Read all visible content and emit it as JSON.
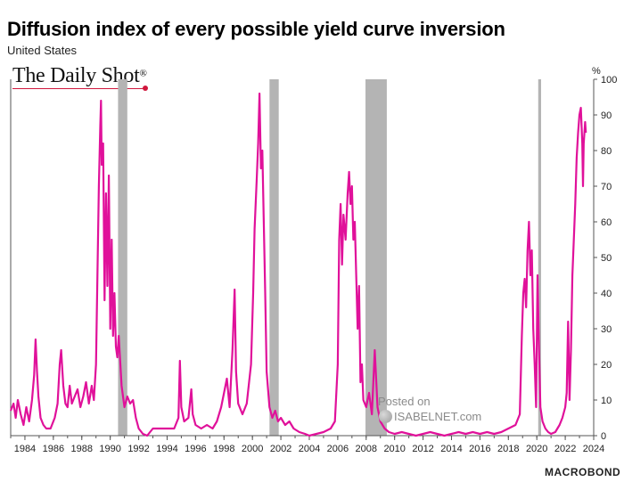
{
  "header": {
    "title": "Diffusion index of every possible yield curve inversion",
    "subtitle": "United States"
  },
  "branding": {
    "logo_text": "The Daily Shot",
    "logo_mark": "®",
    "footer": "MACROBOND",
    "watermark_posted": "Posted on",
    "watermark_site": "ISABELNET.com"
  },
  "colors": {
    "series": "#e0119a",
    "recession": "#b4b4b4",
    "logo_accent": "#d0173d"
  },
  "chart_data": {
    "type": "line",
    "title": "Diffusion index of every possible yield curve inversion",
    "subtitle": "United States",
    "y_unit": "%",
    "ylim": [
      0,
      100
    ],
    "xlim": [
      1983,
      2024
    ],
    "y_ticks": [
      0,
      10,
      20,
      30,
      40,
      50,
      60,
      70,
      80,
      90,
      100
    ],
    "x_ticks": [
      "1984",
      "1986",
      "1988",
      "1990",
      "1992",
      "1994",
      "1996",
      "1998",
      "2000",
      "2002",
      "2004",
      "2006",
      "2008",
      "2010",
      "2012",
      "2014",
      "2016",
      "2018",
      "2020",
      "2022",
      "2024"
    ],
    "y_axis_position": "right",
    "grid": false,
    "recessions": [
      {
        "start": 1990.55,
        "end": 1991.2
      },
      {
        "start": 2001.2,
        "end": 2001.85
      },
      {
        "start": 2007.95,
        "end": 2009.45
      },
      {
        "start": 2020.1,
        "end": 2020.3
      }
    ],
    "series": [
      {
        "values": [
          [
            1983.0,
            7
          ],
          [
            1983.2,
            9
          ],
          [
            1983.35,
            5
          ],
          [
            1983.5,
            10
          ],
          [
            1983.7,
            6
          ],
          [
            1983.9,
            3
          ],
          [
            1984.1,
            8
          ],
          [
            1984.3,
            4
          ],
          [
            1984.5,
            10
          ],
          [
            1984.65,
            17
          ],
          [
            1984.75,
            27
          ],
          [
            1984.85,
            18
          ],
          [
            1984.95,
            11
          ],
          [
            1985.1,
            5
          ],
          [
            1985.3,
            3
          ],
          [
            1985.5,
            2
          ],
          [
            1985.8,
            2
          ],
          [
            1986.1,
            5
          ],
          [
            1986.3,
            9
          ],
          [
            1986.45,
            20
          ],
          [
            1986.55,
            24
          ],
          [
            1986.7,
            14
          ],
          [
            1986.85,
            9
          ],
          [
            1987.0,
            8
          ],
          [
            1987.15,
            14
          ],
          [
            1987.3,
            9
          ],
          [
            1987.5,
            11
          ],
          [
            1987.7,
            13
          ],
          [
            1987.9,
            8
          ],
          [
            1988.1,
            11
          ],
          [
            1988.3,
            15
          ],
          [
            1988.5,
            9
          ],
          [
            1988.7,
            14
          ],
          [
            1988.85,
            10
          ],
          [
            1989.0,
            20
          ],
          [
            1989.1,
            45
          ],
          [
            1989.2,
            70
          ],
          [
            1989.3,
            87
          ],
          [
            1989.35,
            94
          ],
          [
            1989.4,
            76
          ],
          [
            1989.5,
            82
          ],
          [
            1989.6,
            38
          ],
          [
            1989.7,
            68
          ],
          [
            1989.8,
            42
          ],
          [
            1989.9,
            73
          ],
          [
            1990.0,
            30
          ],
          [
            1990.1,
            55
          ],
          [
            1990.2,
            28
          ],
          [
            1990.3,
            40
          ],
          [
            1990.4,
            25
          ],
          [
            1990.5,
            22
          ],
          [
            1990.6,
            28
          ],
          [
            1990.8,
            14
          ],
          [
            1991.0,
            8
          ],
          [
            1991.2,
            11
          ],
          [
            1991.4,
            9
          ],
          [
            1991.6,
            10
          ],
          [
            1991.8,
            5
          ],
          [
            1992.0,
            2
          ],
          [
            1992.3,
            0.5
          ],
          [
            1992.6,
            0
          ],
          [
            1993.0,
            2
          ],
          [
            1993.5,
            2
          ],
          [
            1994.0,
            2
          ],
          [
            1994.5,
            2
          ],
          [
            1994.8,
            5
          ],
          [
            1994.9,
            21
          ],
          [
            1995.0,
            8
          ],
          [
            1995.2,
            4
          ],
          [
            1995.5,
            5
          ],
          [
            1995.7,
            13
          ],
          [
            1995.8,
            6
          ],
          [
            1996.0,
            3
          ],
          [
            1996.4,
            2
          ],
          [
            1996.8,
            3
          ],
          [
            1997.2,
            2
          ],
          [
            1997.5,
            4
          ],
          [
            1997.8,
            8
          ],
          [
            1998.0,
            12
          ],
          [
            1998.2,
            16
          ],
          [
            1998.4,
            8
          ],
          [
            1998.6,
            24
          ],
          [
            1998.75,
            41
          ],
          [
            1998.85,
            18
          ],
          [
            1999.0,
            9
          ],
          [
            1999.3,
            6
          ],
          [
            1999.6,
            9
          ],
          [
            1999.9,
            20
          ],
          [
            2000.05,
            40
          ],
          [
            2000.15,
            58
          ],
          [
            2000.3,
            72
          ],
          [
            2000.4,
            82
          ],
          [
            2000.5,
            96
          ],
          [
            2000.6,
            75
          ],
          [
            2000.7,
            80
          ],
          [
            2000.8,
            60
          ],
          [
            2000.9,
            40
          ],
          [
            2001.0,
            18
          ],
          [
            2001.2,
            8
          ],
          [
            2001.4,
            5
          ],
          [
            2001.6,
            7
          ],
          [
            2001.8,
            4
          ],
          [
            2002.0,
            5
          ],
          [
            2002.3,
            3
          ],
          [
            2002.6,
            4
          ],
          [
            2002.9,
            2
          ],
          [
            2003.3,
            1
          ],
          [
            2003.7,
            0.5
          ],
          [
            2004.0,
            0
          ],
          [
            2004.5,
            0.5
          ],
          [
            2005.0,
            1
          ],
          [
            2005.5,
            2
          ],
          [
            2005.8,
            4
          ],
          [
            2006.0,
            20
          ],
          [
            2006.1,
            55
          ],
          [
            2006.2,
            65
          ],
          [
            2006.3,
            48
          ],
          [
            2006.4,
            62
          ],
          [
            2006.55,
            55
          ],
          [
            2006.7,
            68
          ],
          [
            2006.8,
            74
          ],
          [
            2006.9,
            65
          ],
          [
            2007.0,
            70
          ],
          [
            2007.1,
            55
          ],
          [
            2007.2,
            60
          ],
          [
            2007.3,
            45
          ],
          [
            2007.4,
            30
          ],
          [
            2007.5,
            42
          ],
          [
            2007.6,
            15
          ],
          [
            2007.7,
            20
          ],
          [
            2007.8,
            10
          ],
          [
            2008.0,
            8
          ],
          [
            2008.2,
            12
          ],
          [
            2008.4,
            6
          ],
          [
            2008.6,
            24
          ],
          [
            2008.8,
            8
          ],
          [
            2009.0,
            4
          ],
          [
            2009.3,
            2
          ],
          [
            2009.6,
            1
          ],
          [
            2010.0,
            0.5
          ],
          [
            2010.5,
            1
          ],
          [
            2011.0,
            0.5
          ],
          [
            2011.5,
            0
          ],
          [
            2012.0,
            0.5
          ],
          [
            2012.5,
            1
          ],
          [
            2013.0,
            0.5
          ],
          [
            2013.5,
            0
          ],
          [
            2014.0,
            0.5
          ],
          [
            2014.5,
            1
          ],
          [
            2015.0,
            0.5
          ],
          [
            2015.5,
            1
          ],
          [
            2016.0,
            0.5
          ],
          [
            2016.5,
            1
          ],
          [
            2017.0,
            0.5
          ],
          [
            2017.5,
            1
          ],
          [
            2018.0,
            2
          ],
          [
            2018.5,
            3
          ],
          [
            2018.8,
            6
          ],
          [
            2018.95,
            28
          ],
          [
            2019.05,
            40
          ],
          [
            2019.15,
            44
          ],
          [
            2019.25,
            36
          ],
          [
            2019.35,
            52
          ],
          [
            2019.45,
            60
          ],
          [
            2019.55,
            45
          ],
          [
            2019.65,
            52
          ],
          [
            2019.75,
            30
          ],
          [
            2019.85,
            20
          ],
          [
            2019.95,
            8
          ],
          [
            2020.05,
            45
          ],
          [
            2020.15,
            25
          ],
          [
            2020.25,
            8
          ],
          [
            2020.4,
            4
          ],
          [
            2020.6,
            2
          ],
          [
            2020.8,
            1
          ],
          [
            2021.0,
            0.5
          ],
          [
            2021.3,
            1
          ],
          [
            2021.6,
            3
          ],
          [
            2021.8,
            5
          ],
          [
            2022.0,
            8
          ],
          [
            2022.1,
            12
          ],
          [
            2022.2,
            32
          ],
          [
            2022.3,
            10
          ],
          [
            2022.4,
            24
          ],
          [
            2022.5,
            45
          ],
          [
            2022.6,
            55
          ],
          [
            2022.7,
            65
          ],
          [
            2022.8,
            78
          ],
          [
            2022.9,
            85
          ],
          [
            2023.0,
            90
          ],
          [
            2023.1,
            92
          ],
          [
            2023.2,
            82
          ],
          [
            2023.25,
            70
          ],
          [
            2023.3,
            82
          ],
          [
            2023.4,
            88
          ],
          [
            2023.45,
            85
          ]
        ]
      }
    ]
  }
}
